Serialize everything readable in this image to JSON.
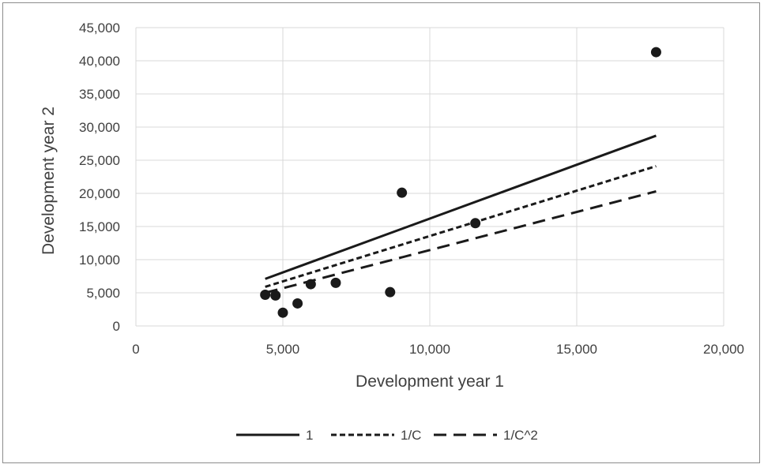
{
  "chart_data": {
    "type": "scatter",
    "xlabel": "Development year 1",
    "ylabel": "Development year 2",
    "xlim": [
      0,
      20000
    ],
    "ylim": [
      0,
      45000
    ],
    "x_ticks": [
      "0",
      "5,000",
      "10,000",
      "15,000",
      "20,000"
    ],
    "y_ticks": [
      "0",
      "5,000",
      "10,000",
      "15,000",
      "20,000",
      "25,000",
      "30,000",
      "35,000",
      "40,000",
      "45,000"
    ],
    "grid": true,
    "legend_position": "bottom",
    "points": [
      {
        "x": 4400,
        "y": 4700
      },
      {
        "x": 4750,
        "y": 4600
      },
      {
        "x": 5000,
        "y": 2000
      },
      {
        "x": 5500,
        "y": 3400
      },
      {
        "x": 5950,
        "y": 6300
      },
      {
        "x": 6800,
        "y": 6500
      },
      {
        "x": 8650,
        "y": 5100
      },
      {
        "x": 9050,
        "y": 20100
      },
      {
        "x": 11550,
        "y": 15500
      },
      {
        "x": 17700,
        "y": 41300
      }
    ],
    "series": [
      {
        "name": "1",
        "style": "solid",
        "x": [
          4400,
          17700
        ],
        "y": [
          7100,
          28700
        ]
      },
      {
        "name": "1/C",
        "style": "dotted",
        "x": [
          4400,
          17700
        ],
        "y": [
          5900,
          24100
        ]
      },
      {
        "name": "1/C^2",
        "style": "dashed",
        "x": [
          4400,
          17700
        ],
        "y": [
          5000,
          20300
        ]
      }
    ],
    "colors": {
      "marker": "#1a1a1a",
      "line": "#1a1a1a",
      "grid": "#d9d9d9",
      "text": "#404040"
    }
  }
}
